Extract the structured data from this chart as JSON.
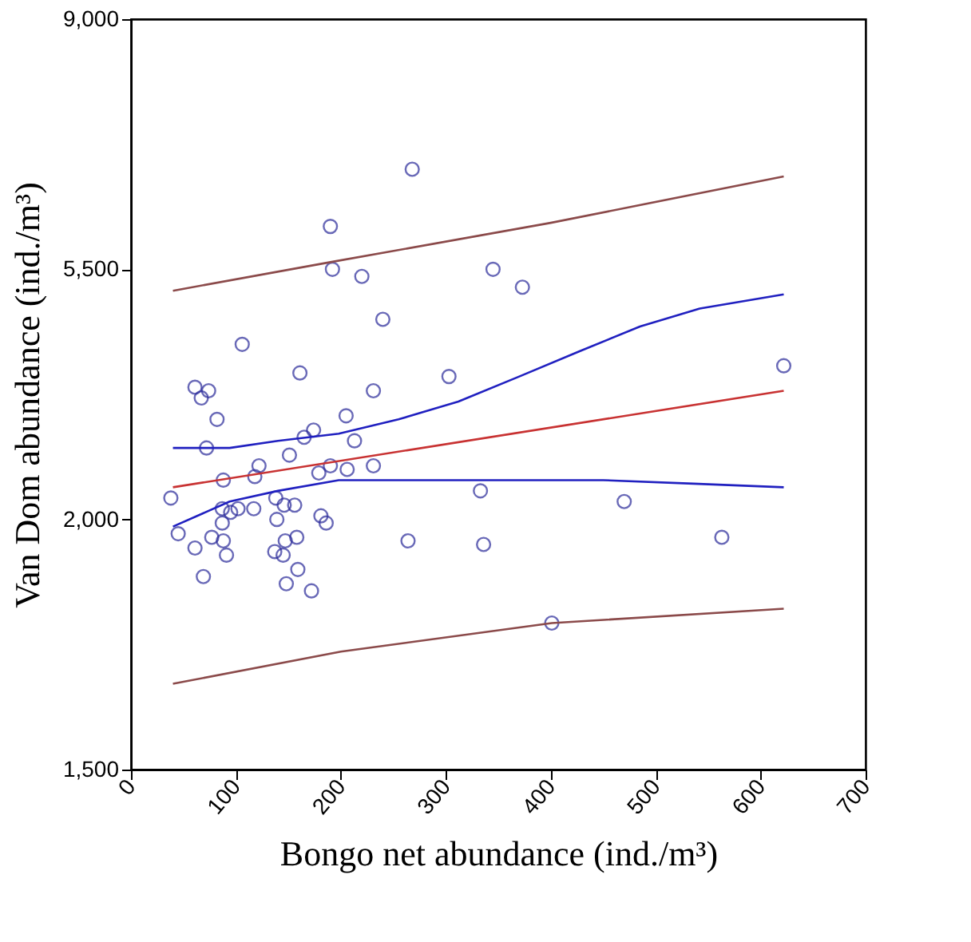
{
  "chart_data": {
    "type": "scatter",
    "xlabel": "Bongo net abundance (ind./m³)",
    "ylabel": "Van Dom abundance (ind./m³)",
    "xlim": [
      0,
      700
    ],
    "xticks": [
      0,
      100,
      200,
      300,
      400,
      500,
      600,
      700
    ],
    "ylim": [
      -1500,
      9000
    ],
    "yticks": [
      {
        "value": -1500,
        "label": "1,500"
      },
      {
        "value": 2000,
        "label": "2,000"
      },
      {
        "value": 5500,
        "label": "5,500"
      },
      {
        "value": 9000,
        "label": "9,000"
      }
    ],
    "grid": false,
    "series": [
      {
        "color": "#2a2a9a",
        "marker": "circle",
        "x": [
          38,
          45,
          61,
          69,
          61,
          67,
          74,
          72,
          82,
          77,
          88,
          87,
          87,
          88,
          91,
          95,
          102,
          106,
          117,
          118,
          122,
          138,
          139,
          137,
          145,
          147,
          148,
          146,
          156,
          158,
          159,
          161,
          151,
          165,
          174,
          172,
          179,
          181,
          186,
          190,
          192,
          190,
          205,
          206,
          213,
          220,
          231,
          231,
          240,
          264,
          268,
          303,
          333,
          336,
          345,
          373,
          401,
          470,
          563,
          622
        ],
        "values": [
          2300,
          1800,
          1600,
          1200,
          3850,
          3700,
          3800,
          3000,
          3400,
          1750,
          2550,
          2150,
          1950,
          1700,
          1500,
          2100,
          2150,
          4450,
          2150,
          2600,
          2750,
          2300,
          2000,
          1550,
          1500,
          1700,
          1100,
          2200,
          2200,
          1750,
          1300,
          4050,
          2900,
          3150,
          3250,
          1000,
          2650,
          2050,
          1950,
          6100,
          5500,
          2750,
          3450,
          2700,
          3100,
          5400,
          3800,
          2750,
          4800,
          1700,
          6900,
          4000,
          2400,
          1650,
          5500,
          5250,
          550,
          2250,
          1750,
          4150
        ]
      },
      {
        "type": "line",
        "color": "#c83232",
        "marker": "none",
        "line_style": "solid",
        "x": [
          40,
          622
        ],
        "values": [
          2450,
          3800
        ]
      },
      {
        "type": "line",
        "color": "#2020c0",
        "marker": "none",
        "line_style": "solid",
        "x": [
          40,
          94,
          140,
          198,
          255,
          312,
          370,
          427,
          485,
          542,
          622
        ],
        "values": [
          3000,
          3000,
          3100,
          3200,
          3400,
          3650,
          4000,
          4350,
          4700,
          4950,
          5150
        ]
      },
      {
        "type": "line",
        "color": "#2020c0",
        "marker": "none",
        "line_style": "solid",
        "x": [
          40,
          94,
          140,
          198,
          255,
          335,
          450,
          536,
          622
        ],
        "values": [
          1900,
          2250,
          2400,
          2550,
          2550,
          2550,
          2550,
          2500,
          2450
        ]
      },
      {
        "type": "line",
        "color": "#8b4a4a",
        "marker": "none",
        "line_style": "solid",
        "x": [
          40,
          190,
          400,
          622
        ],
        "values": [
          5200,
          5600,
          6150,
          6800
        ]
      },
      {
        "type": "line",
        "color": "#8b4a4a",
        "marker": "none",
        "line_style": "solid",
        "x": [
          40,
          200,
          401,
          622
        ],
        "values": [
          -300,
          150,
          550,
          750
        ]
      }
    ]
  }
}
